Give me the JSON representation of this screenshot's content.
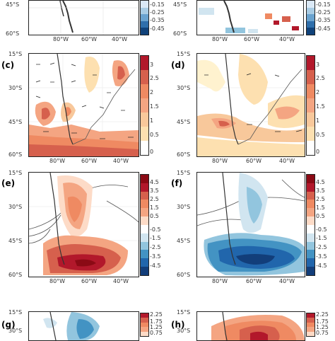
{
  "panels": {
    "a": {
      "label": "",
      "lat": [
        "45°S",
        "60°S"
      ],
      "lon": [
        "80°W",
        "60°W",
        "40°W"
      ]
    },
    "b": {
      "label": "",
      "lat": [
        "45°S",
        "60°S"
      ],
      "lon": [
        "80°W",
        "60°W",
        "40°W"
      ]
    },
    "c": {
      "label": "(c)",
      "lat": [
        "15°S",
        "30°S",
        "45°S",
        "60°S"
      ],
      "lon": [
        "80°W",
        "60°W",
        "40°W"
      ]
    },
    "d": {
      "label": "(d)",
      "lat": [
        "15°S",
        "30°S",
        "45°S",
        "60°S"
      ],
      "lon": [
        "80°W",
        "60°W",
        "40°W"
      ]
    },
    "e": {
      "label": "(e)",
      "lat": [
        "15°S",
        "30°S",
        "45°S",
        "60°S"
      ],
      "lon": [
        "80°W",
        "60°W",
        "40°W"
      ]
    },
    "f": {
      "label": "(f)",
      "lat": [
        "15°S",
        "30°S",
        "45°S",
        "60°S"
      ],
      "lon": [
        "80°W",
        "60°W",
        "40°W"
      ]
    },
    "g": {
      "label": "(g)",
      "lat": [
        "15°S",
        "30°S"
      ]
    },
    "h": {
      "label": "(h)",
      "lat": [
        "15°S",
        "30°S"
      ]
    }
  },
  "colorbars": {
    "top": {
      "ticks": [
        "-0.15",
        "-0.25",
        "-0.35",
        "-0.45"
      ],
      "colors": [
        "#dbe9f6",
        "#a9cce4",
        "#6aa3cf",
        "#2f6fab",
        "#10427a"
      ]
    },
    "cd": {
      "ticks": [
        "3",
        "2.5",
        "2",
        "1.5",
        "1",
        "0.5",
        "0"
      ],
      "colors": [
        "#b2182b",
        "#d6604d",
        "#ef8a62",
        "#f4a582",
        "#f8c89b",
        "#fde0b0",
        "#fff2cf",
        "#ffffff"
      ]
    },
    "ef": {
      "ticks": [
        "4.5",
        "3.5",
        "2.5",
        "1.5",
        "0.5",
        "-0.5",
        "-1.5",
        "-2.5",
        "-3.5",
        "-4.5"
      ],
      "colors": [
        "#8b0a15",
        "#b2182b",
        "#d6604d",
        "#ef8a62",
        "#f4a582",
        "#fddbc7",
        "#ffffff",
        "#d1e5f0",
        "#92c5de",
        "#4393c3",
        "#2166ac",
        "#123e7a"
      ]
    },
    "gh": {
      "ticks": [
        "2.25",
        "1.75",
        "1.25",
        "0.75"
      ],
      "colors": [
        "#b2182b",
        "#d6604d",
        "#ef8a62",
        "#f4a582",
        "#fddbc7"
      ]
    }
  },
  "colors": {
    "continent": "#555555",
    "arrow": "#222222",
    "contour": "#444444"
  }
}
